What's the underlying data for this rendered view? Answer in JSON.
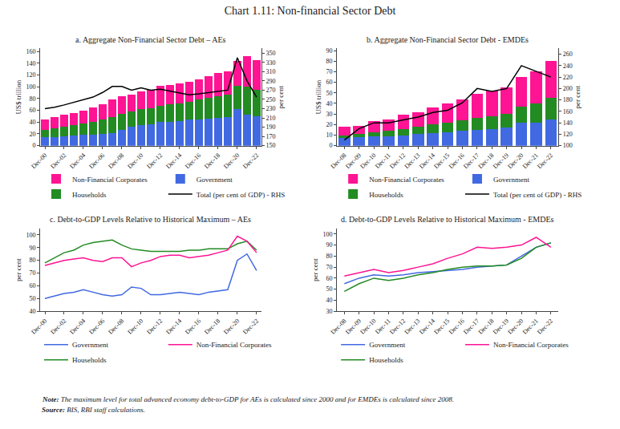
{
  "title": "Chart 1.11: Non-financial Sector Debt",
  "annotations": [
    {
      "label": "Note:",
      "text": "The maximum level for total advanced economy debt-to-GDP for AEs is calculated since 2000 and for EMDEs is calculated since 2008."
    },
    {
      "label": "Source:",
      "text": "BIS, RBI staff calculations."
    }
  ],
  "chart_data": [
    {
      "type": "bar",
      "stacked": true,
      "grid": false,
      "title": "a. Aggregate Non-Financial Sector Debt – AEs",
      "categories": [
        "Dec-00",
        null,
        "Dec-02",
        null,
        "Dec-04",
        null,
        "Dec-06",
        null,
        "Dec-08",
        null,
        "Dec-10",
        null,
        "Dec-12",
        null,
        "Dec-14",
        null,
        "Dec-16",
        null,
        "Dec-18",
        null,
        "Dec-20",
        null,
        "Dec-22"
      ],
      "ylabel": "US$ trillion",
      "ylim": [
        0,
        165
      ],
      "yticks": [
        0,
        20,
        40,
        60,
        80,
        100,
        120,
        140,
        160
      ],
      "y2label": "per cent",
      "y2lim": [
        150,
        360
      ],
      "y2ticks": [
        150,
        170,
        190,
        210,
        230,
        250,
        270,
        290,
        310,
        330,
        350
      ],
      "series": [
        {
          "name": "Government",
          "color": "#4169E1",
          "values": [
            14,
            15,
            16,
            17,
            18,
            19,
            20,
            22,
            27,
            32,
            35,
            37,
            40,
            41,
            42,
            44,
            45,
            46,
            47,
            48,
            62,
            52,
            50
          ]
        },
        {
          "name": "Households",
          "color": "#228B22",
          "values": [
            13,
            14,
            16,
            18,
            20,
            22,
            24,
            27,
            27,
            26,
            27,
            27,
            28,
            29,
            30,
            31,
            33,
            35,
            37,
            38,
            40,
            48,
            45
          ]
        },
        {
          "name": "Non-Financial Corporates",
          "color": "#FF1493",
          "values": [
            18,
            19,
            20,
            21,
            22,
            24,
            27,
            30,
            30,
            29,
            30,
            31,
            33,
            33,
            34,
            34,
            35,
            37,
            39,
            40,
            42,
            52,
            50
          ]
        },
        {
          "name": "Total (per cent of GDP) - RHS",
          "type": "line",
          "axis": "y2",
          "color": "#000000",
          "values": [
            230,
            233,
            238,
            244,
            250,
            255,
            265,
            278,
            278,
            270,
            275,
            270,
            272,
            268,
            265,
            260,
            262,
            265,
            268,
            270,
            340,
            290,
            255
          ]
        }
      ]
    },
    {
      "type": "bar",
      "stacked": true,
      "grid": false,
      "title": "b. Aggregate Non-Financial Sector Debt - EMDEs",
      "categories": [
        "Dec-08",
        "Dec-09",
        "Dec-10",
        "Dec-11",
        "Dec-12",
        "Dec-13",
        "Dec-14",
        "Dec-15",
        "Dec-16",
        "Dec-17",
        "Dec-18",
        "Dec-19",
        "Dec-20",
        "Dec-21",
        "Dec-22"
      ],
      "ylabel": "US$ trillion",
      "ylim": [
        0,
        92
      ],
      "yticks": [
        0,
        10,
        20,
        30,
        40,
        50,
        60,
        70,
        80,
        90
      ],
      "y2label": "per cent",
      "y2lim": [
        100,
        270
      ],
      "y2ticks": [
        100,
        120,
        140,
        160,
        180,
        200,
        220,
        240,
        260
      ],
      "series": [
        {
          "name": "Government",
          "color": "#4169E1",
          "values": [
            7,
            8,
            9,
            9,
            10,
            11,
            12,
            13,
            14,
            15,
            16,
            17,
            22,
            22,
            25
          ]
        },
        {
          "name": "Households",
          "color": "#228B22",
          "values": [
            3,
            3,
            4,
            5,
            6,
            7,
            8,
            9,
            10,
            11,
            12,
            13,
            15,
            18,
            20
          ]
        },
        {
          "name": "Non-Financial Corporates",
          "color": "#FF1493",
          "values": [
            8,
            8,
            10,
            11,
            13,
            14,
            16,
            18,
            20,
            23,
            24,
            25,
            28,
            30,
            35
          ]
        },
        {
          "name": "Total (per cent of GDP) - RHS",
          "type": "line",
          "axis": "y2",
          "color": "#000000",
          "values": [
            110,
            130,
            140,
            140,
            145,
            150,
            158,
            162,
            175,
            200,
            195,
            200,
            240,
            230,
            220
          ]
        }
      ]
    },
    {
      "type": "line",
      "grid": false,
      "title": "c. Debt-to-GDP Levels Relative to Historical Maximum – AEs",
      "categories": [
        "Dec-00",
        null,
        "Dec-02",
        null,
        "Dec-04",
        null,
        "Dec-06",
        null,
        "Dec-08",
        null,
        "Dec-10",
        null,
        "Dec-12",
        null,
        "Dec-14",
        null,
        "Dec-16",
        null,
        "Dec-18",
        null,
        "Dec-20",
        null,
        "Dec-22"
      ],
      "ylabel": "per cent",
      "ylim": [
        40,
        105
      ],
      "yticks": [
        40,
        50,
        60,
        70,
        80,
        90,
        100
      ],
      "series": [
        {
          "name": "Government",
          "color": "#4169E1",
          "values": [
            50,
            52,
            54,
            55,
            57,
            55,
            53,
            52,
            53,
            59,
            58,
            53,
            53,
            54,
            55,
            54,
            53,
            55,
            56,
            57,
            80,
            85,
            72
          ]
        },
        {
          "name": "Households",
          "color": "#228B22",
          "values": [
            78,
            82,
            86,
            88,
            92,
            94,
            95,
            96,
            92,
            89,
            88,
            87,
            87,
            87,
            87,
            88,
            88,
            89,
            89,
            89,
            93,
            95,
            88
          ]
        },
        {
          "name": "Non-Financial Corporates",
          "color": "#FF1493",
          "values": [
            76,
            78,
            80,
            81,
            82,
            80,
            79,
            82,
            82,
            75,
            78,
            80,
            83,
            84,
            84,
            82,
            83,
            84,
            86,
            88,
            99,
            95,
            86
          ]
        }
      ]
    },
    {
      "type": "line",
      "grid": false,
      "title": "d. Debt-to-GDP Levels Relative to Historical Maximum - EMDEs",
      "categories": [
        "Dec-08",
        "Dec-09",
        "Dec-10",
        "Dec-11",
        "Dec-12",
        "Dec-13",
        "Dec-14",
        "Dec-15",
        "Dec-16",
        "Dec-17",
        "Dec-18",
        "Dec-19",
        "Dec-20",
        "Dec-21",
        "Dec-22"
      ],
      "ylabel": "per cent",
      "ylim": [
        30,
        105
      ],
      "yticks": [
        30,
        40,
        50,
        60,
        70,
        80,
        90,
        100
      ],
      "series": [
        {
          "name": "Government",
          "color": "#4169E1",
          "values": [
            55,
            60,
            63,
            62,
            63,
            65,
            66,
            67,
            68,
            70,
            71,
            72,
            80,
            88,
            92
          ]
        },
        {
          "name": "Households",
          "color": "#228B22",
          "values": [
            48,
            55,
            60,
            58,
            60,
            63,
            65,
            68,
            70,
            71,
            71,
            72,
            78,
            88,
            92
          ]
        },
        {
          "name": "Non-Financial Corporates",
          "color": "#FF1493",
          "values": [
            62,
            65,
            68,
            65,
            67,
            70,
            73,
            78,
            82,
            88,
            87,
            88,
            90,
            97,
            88
          ]
        }
      ]
    }
  ]
}
